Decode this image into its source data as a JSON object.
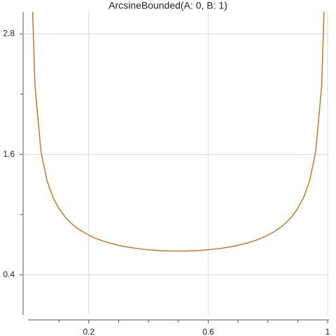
{
  "chart_data": {
    "type": "line",
    "title": "ArcsineBounded(A: 0, B: 1)",
    "x": [
      0.01,
      0.02,
      0.04,
      0.06,
      0.08,
      0.1,
      0.12,
      0.14,
      0.16,
      0.18,
      0.2,
      0.22,
      0.24,
      0.26,
      0.28,
      0.3,
      0.32,
      0.34,
      0.36,
      0.38,
      0.4,
      0.42,
      0.44,
      0.46,
      0.48,
      0.5,
      0.52,
      0.54,
      0.56,
      0.58,
      0.6,
      0.62,
      0.64,
      0.66,
      0.68,
      0.7,
      0.72,
      0.74,
      0.76,
      0.78,
      0.8,
      0.82,
      0.84,
      0.86,
      0.88,
      0.9,
      0.92,
      0.94,
      0.96,
      0.98,
      0.99
    ],
    "series": [
      {
        "color": "#c8782a",
        "values": [
          3.199,
          2.274,
          1.624,
          1.34,
          1.173,
          1.061,
          0.98,
          0.917,
          0.868,
          0.829,
          0.796,
          0.768,
          0.745,
          0.726,
          0.709,
          0.695,
          0.682,
          0.672,
          0.663,
          0.656,
          0.65,
          0.645,
          0.641,
          0.639,
          0.637,
          0.637,
          0.637,
          0.639,
          0.641,
          0.645,
          0.65,
          0.656,
          0.663,
          0.672,
          0.682,
          0.695,
          0.709,
          0.726,
          0.745,
          0.768,
          0.796,
          0.829,
          0.868,
          0.917,
          0.98,
          1.061,
          1.173,
          1.34,
          1.624,
          2.274,
          3.199
        ]
      }
    ],
    "xlim": [
      -0.02,
      1.0
    ],
    "ylim": [
      0,
      3.02
    ],
    "xticks": [
      0.2,
      0.6,
      1.0
    ],
    "yticks": [
      0.4,
      1.6,
      2.8
    ],
    "xminor_ticks": [
      0.1,
      0.3,
      0.4,
      0.5,
      0.7,
      0.8,
      0.9
    ],
    "yminor_ticks": [
      1.0,
      2.2
    ],
    "grid": true
  }
}
